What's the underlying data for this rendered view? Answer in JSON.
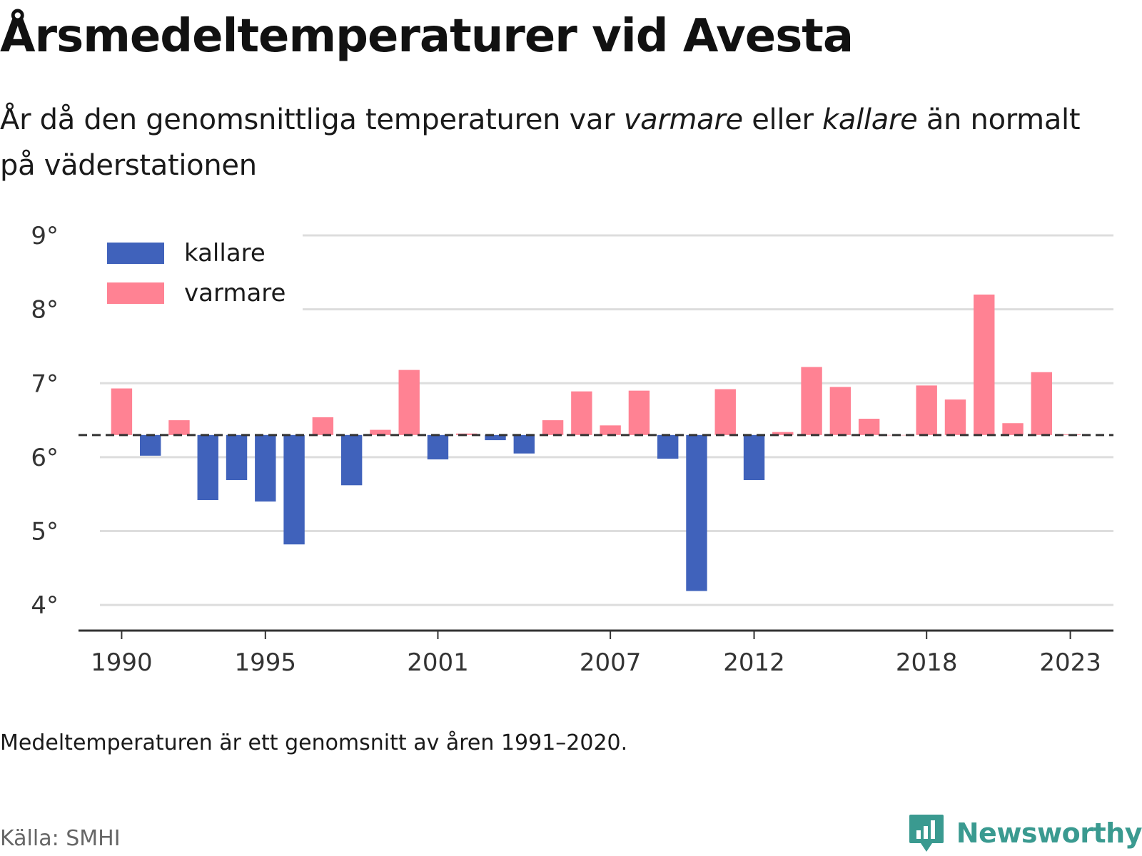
{
  "title": "Årsmedeltemperaturer vid Avesta",
  "subtitle": {
    "part1": "År då den genomsnittliga temperaturen var ",
    "em1": "varmare",
    "part2": " eller ",
    "em2": "kallare",
    "part3": " än normalt på väderstationen"
  },
  "note": "Medeltemperaturen är ett genomsnitt av åren 1991–2020.",
  "source": "Källa: SMHI",
  "logo": {
    "text": "Newsworthy",
    "color": "#3a9a90"
  },
  "chart_data": {
    "type": "bar",
    "baseline": 6.3,
    "ylim": [
      3.5,
      9.0
    ],
    "yticks": [
      4,
      5,
      6,
      7,
      8,
      9
    ],
    "ytick_labels": [
      "4°",
      "5°",
      "6°",
      "7°",
      "8°",
      "9°"
    ],
    "xlim": [
      1988.5,
      2024.5
    ],
    "xticks": [
      1990,
      1995,
      2001,
      2007,
      2012,
      2018,
      2023
    ],
    "xtick_labels": [
      "1990",
      "1995",
      "2001",
      "2007",
      "2012",
      "2018",
      "2023"
    ],
    "grid": true,
    "legend_position": "top-left",
    "colors": {
      "kallare": "#4062bb",
      "varmare": "#ff8293",
      "baseline": "#333333",
      "grid": "#dddddd",
      "axis": "#333333"
    },
    "series": [
      {
        "name": "kallare"
      },
      {
        "name": "varmare"
      }
    ],
    "years": [
      1990,
      1991,
      1992,
      1993,
      1994,
      1995,
      1996,
      1997,
      1998,
      1999,
      2000,
      2001,
      2002,
      2003,
      2004,
      2005,
      2006,
      2007,
      2008,
      2009,
      2010,
      2011,
      2012,
      2013,
      2014,
      2015,
      2016,
      2017,
      2018,
      2019,
      2020,
      2021,
      2022,
      2023
    ],
    "values": [
      6.93,
      6.02,
      6.5,
      5.42,
      5.69,
      5.4,
      4.82,
      6.54,
      5.62,
      6.37,
      7.18,
      5.97,
      6.32,
      6.23,
      6.05,
      6.5,
      6.89,
      6.43,
      6.9,
      5.98,
      4.19,
      6.92,
      5.69,
      6.34,
      7.22,
      6.95,
      6.52,
      6.3,
      6.97,
      6.78,
      8.2,
      6.46,
      7.15,
      6.31
    ]
  }
}
